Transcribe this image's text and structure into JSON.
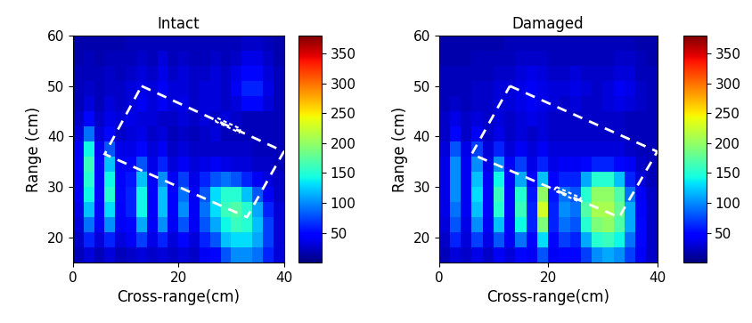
{
  "chart_data": [
    {
      "type": "heatmap",
      "title": "Intact",
      "xlabel": "Cross-range(cm)",
      "ylabel": "Range (cm)",
      "xlim": [
        0,
        40
      ],
      "ylim": [
        15,
        60
      ],
      "xticks": [
        0,
        20,
        40
      ],
      "yticks": [
        20,
        30,
        40,
        50,
        60
      ],
      "x_edges": [
        0,
        2,
        4,
        6,
        8,
        10,
        12,
        14,
        16,
        18,
        20,
        22,
        24,
        26,
        28,
        30,
        32,
        34,
        36,
        38,
        40
      ],
      "y_edges": [
        15,
        18,
        21,
        24,
        27,
        30,
        33,
        36,
        39,
        42,
        45,
        48,
        51,
        54,
        57,
        60
      ],
      "cells": [
        [
          20,
          30,
          20,
          30,
          20,
          25,
          30,
          25,
          30,
          25,
          30,
          25,
          40,
          50,
          80,
          100,
          100,
          90,
          60,
          30
        ],
        [
          25,
          60,
          30,
          60,
          30,
          40,
          70,
          35,
          60,
          30,
          50,
          30,
          60,
          80,
          120,
          130,
          130,
          110,
          70,
          30
        ],
        [
          30,
          90,
          40,
          100,
          40,
          50,
          110,
          40,
          100,
          40,
          80,
          40,
          80,
          110,
          140,
          160,
          150,
          120,
          70,
          30
        ],
        [
          35,
          120,
          45,
          130,
          45,
          60,
          140,
          45,
          120,
          45,
          100,
          40,
          90,
          130,
          160,
          170,
          150,
          110,
          60,
          30
        ],
        [
          40,
          140,
          50,
          150,
          50,
          60,
          140,
          45,
          120,
          45,
          90,
          40,
          80,
          130,
          150,
          150,
          120,
          80,
          40,
          25
        ],
        [
          40,
          150,
          50,
          140,
          45,
          55,
          120,
          40,
          100,
          40,
          70,
          35,
          60,
          80,
          90,
          80,
          60,
          40,
          30,
          25
        ],
        [
          45,
          160,
          50,
          120,
          40,
          45,
          80,
          35,
          60,
          30,
          40,
          30,
          35,
          40,
          35,
          30,
          30,
          25,
          25,
          20
        ],
        [
          40,
          140,
          40,
          80,
          35,
          35,
          50,
          30,
          40,
          25,
          30,
          25,
          25,
          25,
          25,
          25,
          25,
          20,
          20,
          20
        ],
        [
          30,
          90,
          30,
          50,
          25,
          30,
          35,
          25,
          30,
          20,
          25,
          20,
          25,
          30,
          20,
          20,
          20,
          20,
          20,
          20
        ],
        [
          25,
          50,
          25,
          35,
          30,
          35,
          30,
          30,
          25,
          25,
          30,
          25,
          30,
          25,
          30,
          25,
          20,
          20,
          20,
          20
        ],
        [
          20,
          30,
          20,
          30,
          25,
          30,
          40,
          30,
          40,
          30,
          35,
          25,
          30,
          30,
          25,
          30,
          50,
          50,
          30,
          20
        ],
        [
          20,
          25,
          20,
          25,
          25,
          30,
          35,
          30,
          40,
          30,
          30,
          25,
          30,
          30,
          25,
          40,
          60,
          60,
          35,
          20
        ],
        [
          20,
          20,
          20,
          25,
          20,
          25,
          30,
          25,
          35,
          25,
          30,
          25,
          25,
          30,
          25,
          35,
          50,
          50,
          30,
          20
        ],
        [
          15,
          20,
          15,
          20,
          20,
          20,
          25,
          20,
          30,
          20,
          25,
          20,
          20,
          25,
          20,
          25,
          35,
          35,
          25,
          15
        ],
        [
          15,
          15,
          15,
          15,
          15,
          20,
          20,
          20,
          20,
          20,
          20,
          20,
          20,
          20,
          20,
          20,
          25,
          25,
          20,
          15
        ]
      ],
      "colorbar": {
        "range": [
          0,
          380
        ],
        "ticks": [
          50,
          100,
          150,
          200,
          250,
          300,
          350
        ]
      },
      "target_outline": [
        [
          13,
          50
        ],
        [
          40,
          37
        ],
        [
          33,
          24
        ],
        [
          6,
          36.5
        ]
      ],
      "defect": [
        [
          27,
          43
        ],
        [
          31.5,
          40.8
        ],
        [
          31.8,
          41.5
        ],
        [
          27.3,
          43.7
        ]
      ]
    },
    {
      "type": "heatmap",
      "title": "Damaged",
      "xlabel": "Cross-range(cm)",
      "ylabel": "Range (cm)",
      "xlim": [
        0,
        40
      ],
      "ylim": [
        15,
        60
      ],
      "xticks": [
        0,
        20,
        40
      ],
      "yticks": [
        20,
        30,
        40,
        50,
        60
      ],
      "x_edges": [
        0,
        2,
        4,
        6,
        8,
        10,
        12,
        14,
        16,
        18,
        20,
        22,
        24,
        26,
        28,
        30,
        32,
        34,
        36,
        38,
        40
      ],
      "y_edges": [
        15,
        18,
        21,
        24,
        27,
        30,
        33,
        36,
        39,
        42,
        45,
        48,
        51,
        54,
        57,
        60
      ],
      "cells": [
        [
          20,
          30,
          25,
          35,
          25,
          40,
          30,
          50,
          40,
          80,
          40,
          50,
          50,
          70,
          100,
          110,
          100,
          70,
          40,
          25
        ],
        [
          25,
          60,
          30,
          70,
          35,
          80,
          40,
          90,
          50,
          130,
          50,
          70,
          60,
          110,
          150,
          160,
          140,
          90,
          50,
          25
        ],
        [
          30,
          80,
          35,
          100,
          40,
          120,
          45,
          140,
          60,
          190,
          60,
          90,
          80,
          150,
          190,
          200,
          170,
          110,
          50,
          25
        ],
        [
          35,
          90,
          40,
          120,
          45,
          150,
          50,
          160,
          60,
          230,
          60,
          100,
          90,
          170,
          210,
          210,
          180,
          110,
          45,
          25
        ],
        [
          35,
          100,
          40,
          130,
          45,
          160,
          50,
          150,
          55,
          200,
          55,
          90,
          80,
          150,
          200,
          200,
          170,
          90,
          40,
          25
        ],
        [
          35,
          100,
          40,
          120,
          40,
          140,
          45,
          110,
          45,
          120,
          45,
          60,
          60,
          110,
          150,
          150,
          120,
          60,
          30,
          20
        ],
        [
          35,
          100,
          40,
          100,
          35,
          100,
          40,
          70,
          35,
          60,
          35,
          40,
          40,
          50,
          60,
          60,
          50,
          40,
          25,
          20
        ],
        [
          30,
          80,
          35,
          70,
          30,
          60,
          30,
          40,
          30,
          40,
          30,
          30,
          30,
          30,
          30,
          30,
          30,
          25,
          20,
          20
        ],
        [
          25,
          50,
          25,
          40,
          25,
          35,
          25,
          30,
          25,
          30,
          25,
          25,
          25,
          25,
          25,
          25,
          25,
          20,
          20,
          20
        ],
        [
          25,
          35,
          25,
          30,
          25,
          30,
          25,
          30,
          35,
          30,
          25,
          25,
          25,
          25,
          25,
          25,
          25,
          20,
          20,
          20
        ],
        [
          20,
          25,
          20,
          25,
          25,
          30,
          30,
          35,
          40,
          35,
          30,
          25,
          30,
          25,
          25,
          30,
          35,
          30,
          25,
          20
        ],
        [
          20,
          20,
          20,
          25,
          25,
          30,
          30,
          35,
          40,
          35,
          30,
          30,
          35,
          30,
          25,
          30,
          40,
          35,
          25,
          20
        ],
        [
          20,
          20,
          20,
          20,
          20,
          25,
          25,
          30,
          35,
          30,
          25,
          25,
          30,
          25,
          25,
          25,
          30,
          30,
          20,
          20
        ],
        [
          15,
          15,
          15,
          20,
          20,
          20,
          20,
          25,
          25,
          25,
          20,
          20,
          20,
          20,
          20,
          20,
          25,
          25,
          20,
          15
        ],
        [
          15,
          15,
          15,
          15,
          15,
          15,
          20,
          20,
          20,
          20,
          20,
          20,
          20,
          20,
          20,
          20,
          20,
          20,
          15,
          15
        ]
      ],
      "colorbar": {
        "range": [
          0,
          380
        ],
        "ticks": [
          50,
          100,
          150,
          200,
          250,
          300,
          350
        ]
      },
      "target_outline": [
        [
          13,
          50
        ],
        [
          40,
          37
        ],
        [
          33,
          24
        ],
        [
          6,
          36.5
        ]
      ],
      "defect": [
        [
          21.5,
          30
        ],
        [
          26,
          27.8
        ],
        [
          25.6,
          27.1
        ],
        [
          21.1,
          29.3
        ]
      ]
    }
  ]
}
